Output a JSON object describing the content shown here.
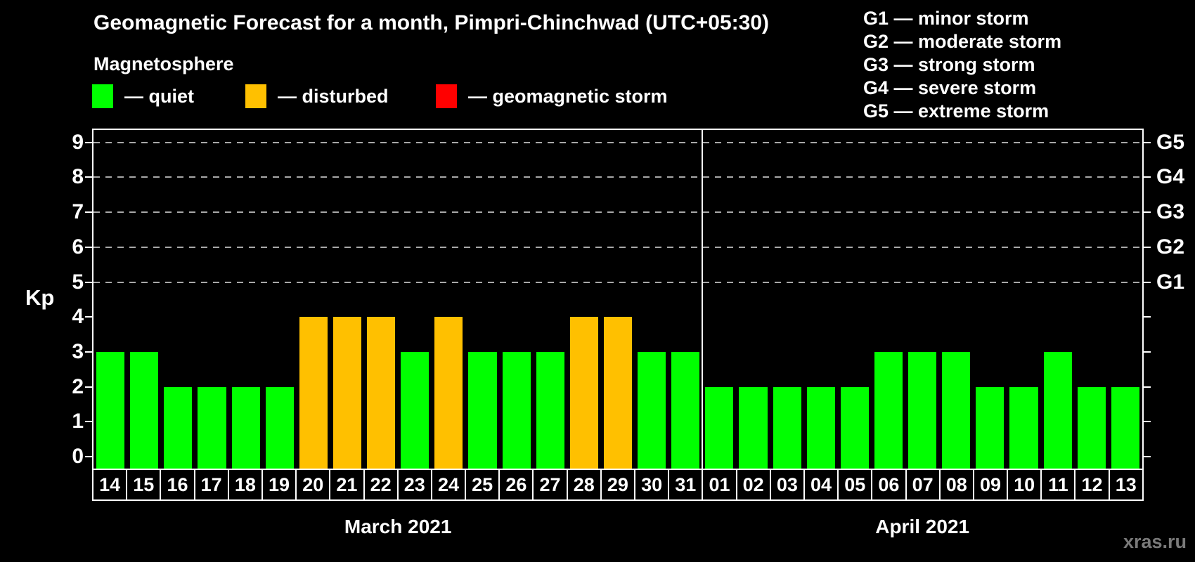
{
  "watermark": "xras.ru",
  "chart_data": {
    "type": "bar",
    "title": "Geomagnetic Forecast for a month, Pimpri-Chinchwad (UTC+05:30)",
    "subtitle": "Magnetosphere",
    "ylabel": "Kp",
    "ylim": [
      0,
      9
    ],
    "yticks": [
      0,
      1,
      2,
      3,
      4,
      5,
      6,
      7,
      8,
      9
    ],
    "grid_levels": [
      5,
      6,
      7,
      8,
      9
    ],
    "grid_on": true,
    "legend_position": "top",
    "right_axis": [
      {
        "kp": 5,
        "label": "G1"
      },
      {
        "kp": 6,
        "label": "G2"
      },
      {
        "kp": 7,
        "label": "G3"
      },
      {
        "kp": 8,
        "label": "G4"
      },
      {
        "kp": 9,
        "label": "G5"
      }
    ],
    "legend": [
      {
        "state": "quiet",
        "label": "— quiet",
        "color": "#00ff00"
      },
      {
        "state": "disturbed",
        "label": "— disturbed",
        "color": "#ffc000"
      },
      {
        "state": "storm",
        "label": "— geomagnetic storm",
        "color": "#ff0000"
      }
    ],
    "g_descriptions": [
      "G1 — minor storm",
      "G2 — moderate storm",
      "G3 — strong storm",
      "G4 — severe storm",
      "G5 — extreme storm"
    ],
    "state_colors": {
      "quiet": "#00ff00",
      "disturbed": "#ffc000",
      "storm": "#ff0000"
    },
    "groups": [
      {
        "month_label": "March 2021",
        "days": [
          "14",
          "15",
          "16",
          "17",
          "18",
          "19",
          "20",
          "21",
          "22",
          "23",
          "24",
          "25",
          "26",
          "27",
          "28",
          "29",
          "30",
          "31"
        ],
        "values": [
          3,
          3,
          2,
          2,
          2,
          2,
          4,
          4,
          4,
          3,
          4,
          3,
          3,
          3,
          4,
          4,
          3,
          3
        ],
        "states": [
          "quiet",
          "quiet",
          "quiet",
          "quiet",
          "quiet",
          "quiet",
          "disturbed",
          "disturbed",
          "disturbed",
          "quiet",
          "disturbed",
          "quiet",
          "quiet",
          "quiet",
          "disturbed",
          "disturbed",
          "quiet",
          "quiet"
        ]
      },
      {
        "month_label": "April 2021",
        "days": [
          "01",
          "02",
          "03",
          "04",
          "05",
          "06",
          "07",
          "08",
          "09",
          "10",
          "11",
          "12",
          "13"
        ],
        "values": [
          2,
          2,
          2,
          2,
          2,
          3,
          3,
          3,
          2,
          2,
          3,
          2,
          2
        ],
        "states": [
          "quiet",
          "quiet",
          "quiet",
          "quiet",
          "quiet",
          "quiet",
          "quiet",
          "quiet",
          "quiet",
          "quiet",
          "quiet",
          "quiet",
          "quiet"
        ]
      }
    ]
  }
}
